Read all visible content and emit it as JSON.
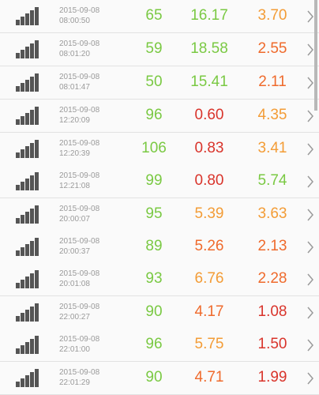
{
  "colors": {
    "green": "#7ac943",
    "red": "#d9342b",
    "orange": "#f39c36",
    "orange_red": "#ef6a2c",
    "timestamp": "#9a9a9a",
    "icon": "#555555",
    "chevron": "#9a9a9a"
  },
  "rows": [
    {
      "date": "2015-09-08",
      "time": "08:00:50",
      "v1": "65",
      "v2": "16.17",
      "v3": "3.70",
      "c1": "green",
      "c2": "green",
      "c3": "orange"
    },
    {
      "date": "2015-09-08",
      "time": "08:01:20",
      "v1": "59",
      "v2": "18.58",
      "v3": "2.55",
      "c1": "green",
      "c2": "green",
      "c3": "orange_red"
    },
    {
      "date": "2015-09-08",
      "time": "08:01:47",
      "v1": "50",
      "v2": "15.41",
      "v3": "2.11",
      "c1": "green",
      "c2": "green",
      "c3": "orange_red"
    },
    {
      "date": "2015-09-08",
      "time": "12:20:09",
      "v1": "96",
      "v2": "0.60",
      "v3": "4.35",
      "c1": "green",
      "c2": "red",
      "c3": "orange"
    },
    {
      "date": "2015-09-08",
      "time": "12:20:39",
      "v1": "106",
      "v2": "0.83",
      "v3": "3.41",
      "c1": "green",
      "c2": "red",
      "c3": "orange"
    },
    {
      "date": "2015-09-08",
      "time": "12:21:08",
      "v1": "99",
      "v2": "0.80",
      "v3": "5.74",
      "c1": "green",
      "c2": "red",
      "c3": "green"
    },
    {
      "date": "2015-09-08",
      "time": "20:00:07",
      "v1": "95",
      "v2": "5.39",
      "v3": "3.63",
      "c1": "green",
      "c2": "orange",
      "c3": "orange"
    },
    {
      "date": "2015-09-08",
      "time": "20:00:37",
      "v1": "89",
      "v2": "5.26",
      "v3": "2.13",
      "c1": "green",
      "c2": "orange_red",
      "c3": "orange_red"
    },
    {
      "date": "2015-09-08",
      "time": "20:01:08",
      "v1": "93",
      "v2": "6.76",
      "v3": "2.28",
      "c1": "green",
      "c2": "orange",
      "c3": "orange_red"
    },
    {
      "date": "2015-09-08",
      "time": "22:00:27",
      "v1": "90",
      "v2": "4.17",
      "v3": "1.08",
      "c1": "green",
      "c2": "orange_red",
      "c3": "red"
    },
    {
      "date": "2015-09-08",
      "time": "22:01:00",
      "v1": "96",
      "v2": "5.75",
      "v3": "1.50",
      "c1": "green",
      "c2": "orange",
      "c3": "red"
    },
    {
      "date": "2015-09-08",
      "time": "22:01:29",
      "v1": "90",
      "v2": "4.71",
      "v3": "1.99",
      "c1": "green",
      "c2": "orange_red",
      "c3": "red"
    }
  ],
  "icons": {
    "signal": "signal-strength-icon",
    "chevron": "chevron-right-icon"
  }
}
